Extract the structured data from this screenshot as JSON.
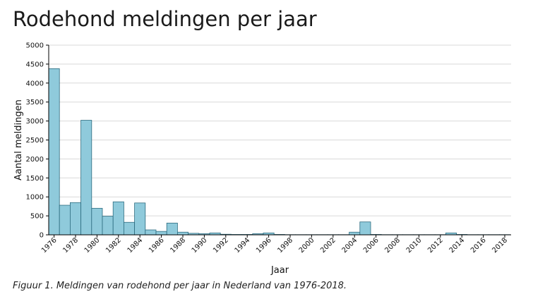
{
  "title": "Rodehond meldingen per jaar",
  "caption": "Figuur 1. Meldingen van rodehond per jaar in Nederland van 1976-2018.",
  "colors": {
    "bar_fill": "#8fcadb",
    "bar_stroke": "#2b6a7e",
    "grid": "#d9d9d9",
    "axis": "#000000"
  },
  "chart_data": {
    "type": "bar",
    "title": "Rodehond meldingen per jaar",
    "xlabel": "Jaar",
    "ylabel": "Aantal meldingen",
    "ylim": [
      0,
      5000
    ],
    "yticks": [
      0,
      500,
      1000,
      1500,
      2000,
      2500,
      3000,
      3500,
      4000,
      4500,
      5000
    ],
    "grid": true,
    "categories": [
      1976,
      1977,
      1978,
      1979,
      1980,
      1981,
      1982,
      1983,
      1984,
      1985,
      1986,
      1987,
      1988,
      1989,
      1990,
      1991,
      1992,
      1993,
      1994,
      1995,
      1996,
      1997,
      1998,
      1999,
      2000,
      2001,
      2002,
      2003,
      2004,
      2005,
      2006,
      2007,
      2008,
      2009,
      2010,
      2011,
      2012,
      2013,
      2014,
      2015,
      2016,
      2017,
      2018
    ],
    "xtick_labels": [
      "1976",
      "1978",
      "1980",
      "1982",
      "1984",
      "1986",
      "1988",
      "1990",
      "1992",
      "1994",
      "1996",
      "1998",
      "2000",
      "2002",
      "2004",
      "2006",
      "2008",
      "2010",
      "2012",
      "2014",
      "2016",
      "2018"
    ],
    "values": [
      4380,
      780,
      850,
      3020,
      700,
      490,
      870,
      330,
      840,
      130,
      90,
      310,
      70,
      40,
      30,
      50,
      15,
      10,
      10,
      30,
      50,
      10,
      5,
      5,
      5,
      5,
      5,
      5,
      70,
      340,
      10,
      5,
      5,
      5,
      5,
      5,
      5,
      50,
      10,
      5,
      5,
      5,
      5
    ]
  }
}
